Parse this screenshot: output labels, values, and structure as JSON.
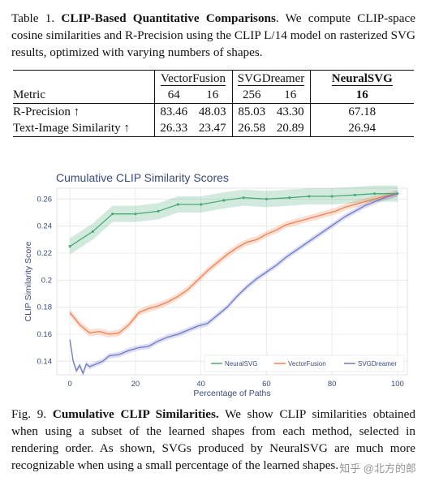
{
  "table_caption": {
    "label": "Table 1.",
    "title": "CLIP-Based Quantitative Comparisons",
    "text": ". We compute CLIP-space cosine similarities and R-Precision using the CLIP L/14 model on rasterized SVG results, optimized with varying numbers of shapes."
  },
  "table": {
    "metric_header": "Metric",
    "groups": [
      "VectorFusion",
      "SVGDreamer",
      "NeuralSVG"
    ],
    "shape_counts": [
      "64",
      "16",
      "256",
      "16",
      "16"
    ],
    "rows": [
      {
        "metric": "R-Precision ↑",
        "values": [
          "83.46",
          "48.03",
          "85.03",
          "43.30",
          "67.18"
        ]
      },
      {
        "metric": "Text-Image Similarity ↑",
        "values": [
          "26.33",
          "23.47",
          "26.58",
          "20.89",
          "26.94"
        ]
      }
    ]
  },
  "chart_data": {
    "type": "line",
    "title": "Cumulative CLIP Similarity Scores",
    "xlabel": "Percentage of Paths",
    "ylabel": "CLIP Similarity Score",
    "xlim": [
      -4,
      103
    ],
    "ylim": [
      0.13,
      0.268
    ],
    "xticks": [
      0,
      20,
      40,
      60,
      80,
      100
    ],
    "yticks": [
      0.14,
      0.16,
      0.18,
      0.2,
      0.22,
      0.24,
      0.26
    ],
    "grid": true,
    "legend_position": "bottom-right",
    "series": [
      {
        "name": "NeuralSVG",
        "color": "#4aab77",
        "band": 0.006,
        "x": [
          0,
          7,
          13,
          20,
          27,
          33,
          40,
          47,
          53,
          60,
          67,
          73,
          80,
          87,
          93,
          100
        ],
        "y": [
          0.225,
          0.236,
          0.249,
          0.249,
          0.251,
          0.256,
          0.256,
          0.259,
          0.261,
          0.26,
          0.261,
          0.262,
          0.262,
          0.263,
          0.264,
          0.264
        ]
      },
      {
        "name": "VectorFusion",
        "color": "#f07f4f",
        "band": 0.0025,
        "x": [
          0,
          3,
          6,
          9,
          12,
          15,
          18,
          21,
          24,
          27,
          30,
          33,
          36,
          39,
          42,
          45,
          48,
          51,
          54,
          57,
          60,
          63,
          66,
          69,
          72,
          75,
          78,
          81,
          84,
          87,
          90,
          93,
          96,
          100
        ],
        "y": [
          0.176,
          0.167,
          0.161,
          0.162,
          0.16,
          0.161,
          0.167,
          0.176,
          0.179,
          0.181,
          0.184,
          0.188,
          0.193,
          0.2,
          0.207,
          0.213,
          0.219,
          0.224,
          0.228,
          0.23,
          0.234,
          0.237,
          0.241,
          0.243,
          0.245,
          0.247,
          0.249,
          0.251,
          0.254,
          0.256,
          0.258,
          0.26,
          0.262,
          0.264
        ]
      },
      {
        "name": "SVGDreamer",
        "color": "#6f78c6",
        "band": 0.002,
        "x": [
          0,
          1,
          2,
          3,
          4,
          5,
          6,
          8,
          10,
          12,
          15,
          18,
          21,
          24,
          27,
          30,
          33,
          36,
          39,
          42,
          45,
          48,
          51,
          54,
          57,
          60,
          63,
          66,
          69,
          72,
          75,
          78,
          81,
          84,
          87,
          90,
          93,
          96,
          100
        ],
        "y": [
          0.156,
          0.14,
          0.133,
          0.137,
          0.131,
          0.138,
          0.136,
          0.138,
          0.14,
          0.144,
          0.145,
          0.148,
          0.15,
          0.151,
          0.155,
          0.158,
          0.16,
          0.163,
          0.166,
          0.168,
          0.174,
          0.18,
          0.188,
          0.195,
          0.201,
          0.206,
          0.211,
          0.217,
          0.222,
          0.227,
          0.232,
          0.237,
          0.242,
          0.247,
          0.251,
          0.255,
          0.258,
          0.261,
          0.264
        ]
      }
    ]
  },
  "figure_caption": {
    "label": "Fig. 9.",
    "title": "Cumulative CLIP Similarities.",
    "text": " We show CLIP similarities obtained when using a subset of the learned shapes from each method, selected in rendering order. As shown, SVGs produced by NeuralSVG are much more recognizable when using a small percentage of the learned shapes."
  },
  "watermark": "知乎 @北方的郎"
}
